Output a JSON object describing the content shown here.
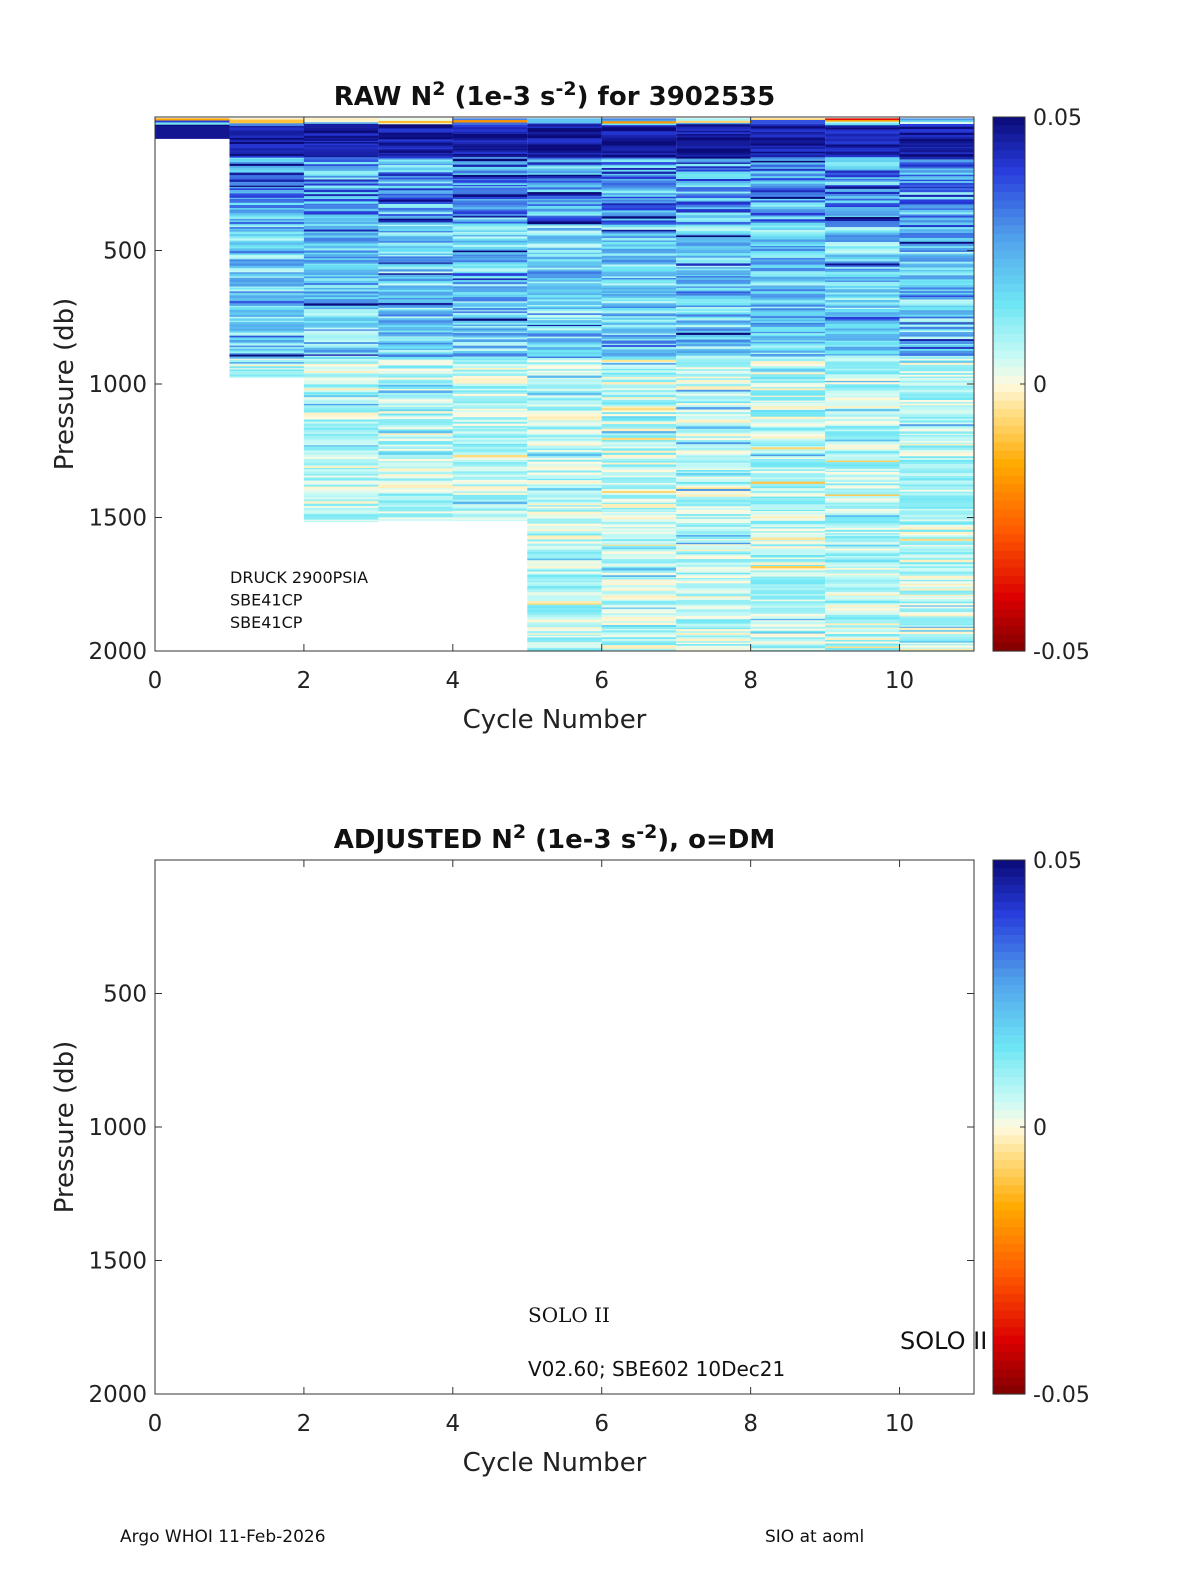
{
  "chart_data": [
    {
      "type": "heatmap",
      "title": {
        "pre": "RAW N",
        "sup1": "2",
        "mid": " (1e-3 s",
        "sup2": "-2",
        "post": ") for 3902535"
      },
      "xlabel": "Cycle Number",
      "ylabel": "Pressure (db)",
      "xlim": [
        0,
        11
      ],
      "ylim": [
        0,
        2000
      ],
      "y_reversed": true,
      "xticks": [
        0,
        2,
        4,
        6,
        8,
        10
      ],
      "yticks": [
        500,
        1000,
        1500,
        2000
      ],
      "colorbar": {
        "min": -0.05,
        "max": 0.05,
        "ticks": [
          "0.05",
          "0",
          "-0.05"
        ],
        "colormap": "jet-like diverging"
      },
      "columns": [
        {
          "cycle": 1,
          "p_top": 5,
          "p_max": 80
        },
        {
          "cycle": 2,
          "p_top": 5,
          "p_max": 975
        },
        {
          "cycle": 3,
          "p_top": 5,
          "p_max": 1515
        },
        {
          "cycle": 4,
          "p_top": 5,
          "p_max": 1510
        },
        {
          "cycle": 5,
          "p_top": 5,
          "p_max": 1510
        },
        {
          "cycle": 6,
          "p_top": 5,
          "p_max": 2000
        },
        {
          "cycle": 7,
          "p_top": 5,
          "p_max": 2000
        },
        {
          "cycle": 8,
          "p_top": 5,
          "p_max": 2000
        },
        {
          "cycle": 9,
          "p_top": 5,
          "p_max": 2000
        },
        {
          "cycle": 10,
          "p_top": 5,
          "p_max": 2000
        },
        {
          "cycle": 11,
          "p_top": 5,
          "p_max": 2000
        }
      ],
      "annotations": [
        "DRUCK 2900PSIA",
        "SBE41CP",
        "SBE41CP"
      ]
    },
    {
      "type": "heatmap",
      "title": {
        "pre": "ADJUSTED N",
        "sup1": "2",
        "mid": " (1e-3 s",
        "sup2": "-2",
        "post": "), o=DM"
      },
      "xlabel": "Cycle Number",
      "ylabel": "Pressure (db)",
      "xlim": [
        0,
        11
      ],
      "ylim": [
        0,
        2000
      ],
      "y_reversed": true,
      "xticks": [
        0,
        2,
        4,
        6,
        8,
        10
      ],
      "yticks": [
        500,
        1000,
        1500,
        2000
      ],
      "colorbar": {
        "min": -0.05,
        "max": 0.05,
        "ticks": [
          "0.05",
          "0",
          "-0.05"
        ],
        "colormap": "jet-like diverging"
      },
      "columns": [],
      "annotations": [
        "SOLO II",
        "V02.60; SBE602 10Dec21",
        "SOLO II"
      ]
    }
  ],
  "footer": {
    "left": "Argo WHOI 11-Feb-2026",
    "right": "SIO at aoml"
  }
}
